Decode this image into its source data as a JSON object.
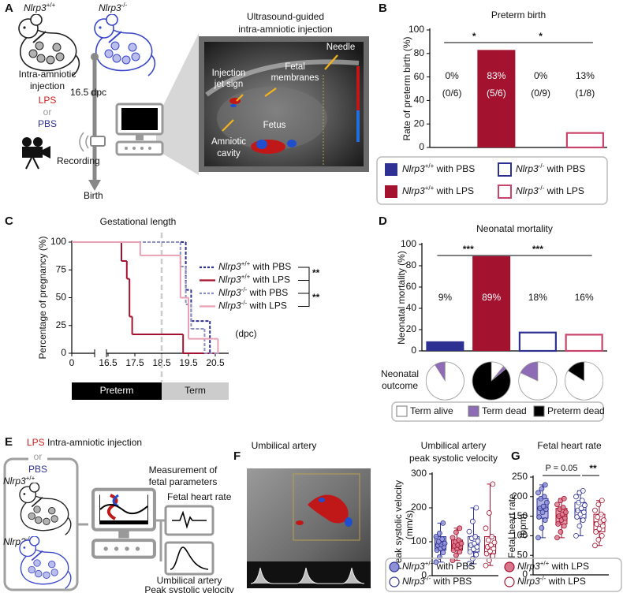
{
  "panel_labels": [
    "A",
    "B",
    "C",
    "D",
    "E",
    "F",
    "G"
  ],
  "panel_a": {
    "genotypes": [
      "Nlrp3+/+",
      "Nlrp3-/-"
    ],
    "injection": [
      "Intra-amniotic",
      "injection"
    ],
    "treatments": [
      "LPS",
      "or",
      "PBS"
    ],
    "timepoint": "16.5 dpc",
    "recording": "Recording",
    "birth": "Birth",
    "image_title": [
      "Ultrasound-guided",
      "intra-amniotic injection"
    ],
    "image_labels": {
      "jet": [
        "Injection",
        "jet sign"
      ],
      "membranes": [
        "Fetal",
        "membranes"
      ],
      "needle": "Needle",
      "fetus": "Fetus",
      "cavity": [
        "Amniotic",
        "cavity"
      ]
    }
  },
  "panel_e": {
    "treatments": [
      "LPS",
      "or",
      "PBS"
    ],
    "injection": "Intra-amniotic injection",
    "genotypes": [
      "Nlrp3+/+",
      "Nlrp3-/-"
    ],
    "measurement": [
      "Measurement of",
      "fetal parameters"
    ],
    "heart_rate": "Fetal heart rate",
    "velocity": [
      "Umbilical artery",
      "Peak systolic velocity"
    ]
  },
  "panel_f_image": {
    "title": "Umbilical artery"
  },
  "chart_data": [
    {
      "type": "bar",
      "title": "Preterm birth",
      "y_label": "Rate of preterm birth (%)",
      "categories": [
        null,
        null,
        null,
        null
      ],
      "values": [
        0,
        83,
        0,
        13
      ],
      "value_labels": [
        "0%",
        "83%",
        "0%",
        "13%"
      ],
      "count_labels": [
        "(0/6)",
        "(5/6)",
        "(0/9)",
        "(1/8)"
      ],
      "colors": [
        "#2e3192",
        "#a3122f",
        "#2e3192",
        "#c8436a"
      ],
      "filled": [
        true,
        true,
        false,
        false
      ],
      "legend": [
        "Nlrp3+/+ with PBS",
        "Nlrp3+/+ with LPS",
        "Nlrp3-/- with PBS",
        "Nlrp3-/- with LPS"
      ],
      "significance": [
        "*",
        "*"
      ],
      "ylim": [
        0,
        100
      ],
      "yticks": [
        0,
        20,
        40,
        60,
        80,
        100
      ]
    },
    {
      "type": "step",
      "title": "Gestational length",
      "y_label": "Percentage of pregnancy (%)",
      "x_unit": "(dpc)",
      "xlim": [
        0,
        21
      ],
      "xticks": [
        0,
        16.5,
        17.5,
        18.5,
        19.5,
        20.5
      ],
      "ylim": [
        0,
        100
      ],
      "yticks": [
        0,
        25,
        50,
        75,
        100
      ],
      "reference_x": 18.5,
      "phases": [
        {
          "label": "Preterm",
          "end": 18.5
        },
        {
          "label": "Term",
          "end": 21
        }
      ],
      "significance": [
        "**",
        "**"
      ],
      "series": [
        {
          "name": "Nlrp3+/+ with PBS",
          "color": "#2e3192",
          "dashed": true,
          "x": [
            0,
            19.4,
            19.6,
            20.3,
            20.6
          ],
          "values": [
            100,
            57,
            29,
            0,
            0
          ]
        },
        {
          "name": "Nlrp3+/+ with LPS",
          "color": "#a3122f",
          "dashed": false,
          "x": [
            0,
            17.0,
            17.2,
            17.3,
            17.4,
            19.3,
            20.6
          ],
          "values": [
            100,
            83,
            67,
            33,
            17,
            0,
            0
          ]
        },
        {
          "name": "Nlrp3-/- with PBS",
          "color": "#8c8fbf",
          "dashed": true,
          "x": [
            0,
            19.2,
            19.4,
            19.6,
            20.1,
            20.6
          ],
          "values": [
            100,
            78,
            44,
            22,
            0,
            0
          ]
        },
        {
          "name": "Nlrp3-/- with LPS",
          "color": "#e8a0b4",
          "dashed": false,
          "x": [
            0,
            17.7,
            19.2,
            19.5,
            20.6
          ],
          "values": [
            100,
            88,
            50,
            13,
            0
          ]
        }
      ]
    },
    {
      "type": "bar",
      "title": "Neonatal mortality",
      "y_label": "Neonatal mortality (%)",
      "categories": [
        null,
        null,
        null,
        null
      ],
      "values": [
        9,
        89,
        18,
        16
      ],
      "value_labels": [
        "9%",
        "89%",
        "18%",
        "16%"
      ],
      "colors": [
        "#2e3192",
        "#a3122f",
        "#2e3192",
        "#c8436a"
      ],
      "filled": [
        true,
        true,
        false,
        false
      ],
      "significance": [
        "***",
        "***"
      ],
      "ylim": [
        0,
        100
      ],
      "yticks": [
        0,
        20,
        40,
        60,
        80,
        100
      ],
      "pies": {
        "label": [
          "Neonatal",
          "outcome"
        ],
        "categories": [
          "Term alive",
          "Term dead",
          "Preterm dead"
        ],
        "colors": [
          "#ffffff",
          "#8e6bb5",
          "#000000"
        ],
        "values": [
          [
            91,
            9,
            0
          ],
          [
            11,
            3,
            86
          ],
          [
            82,
            18,
            0
          ],
          [
            84,
            0,
            16
          ]
        ]
      }
    },
    {
      "type": "box",
      "title": [
        "Umbilical artery",
        "peak systolic velocity"
      ],
      "y_label": [
        "Peak systolic velocity",
        "(mm/s)"
      ],
      "ylim": [
        0,
        300
      ],
      "yticks": [
        0,
        100,
        200,
        300
      ],
      "colors": [
        "#2e3192",
        "#a3122f",
        "#2e3192",
        "#a3122f"
      ],
      "fills": [
        "#8d91d6",
        "#d9768c",
        "#ffffff",
        "#ffffff"
      ],
      "legend": [
        "Nlrp3+/+ with PBS",
        "Nlrp3+/+ with LPS",
        "Nlrp3-/- with PBS",
        "Nlrp3-/- with LPS"
      ],
      "groups": [
        {
          "stats": {
            "min": 40,
            "q1": 75,
            "median": 92,
            "q3": 115,
            "max": 155
          },
          "points": [
            40,
            55,
            68,
            75,
            80,
            85,
            90,
            92,
            95,
            100,
            108,
            115,
            125,
            155
          ]
        },
        {
          "stats": {
            "min": 45,
            "q1": 75,
            "median": 88,
            "q3": 105,
            "max": 140
          },
          "points": [
            45,
            60,
            70,
            75,
            80,
            85,
            88,
            90,
            95,
            100,
            105,
            112,
            128,
            140
          ]
        },
        {
          "stats": {
            "min": 35,
            "q1": 70,
            "median": 90,
            "q3": 115,
            "max": 200
          },
          "points": [
            35,
            50,
            62,
            70,
            78,
            85,
            90,
            95,
            102,
            110,
            115,
            130,
            160,
            200
          ]
        },
        {
          "stats": {
            "min": 30,
            "q1": 65,
            "median": 85,
            "q3": 115,
            "max": 270
          },
          "points": [
            30,
            45,
            58,
            65,
            72,
            80,
            85,
            90,
            98,
            105,
            115,
            140,
            185,
            270
          ]
        }
      ]
    },
    {
      "type": "box",
      "title": "Fetal heart rate",
      "y_label": [
        "Fetal heart rate",
        "(bpm)"
      ],
      "ylim": [
        0,
        250
      ],
      "yticks": [
        0,
        50,
        100,
        150,
        200,
        250
      ],
      "colors": [
        "#2e3192",
        "#a3122f",
        "#2e3192",
        "#a3122f"
      ],
      "fills": [
        "#8d91d6",
        "#d9768c",
        "#ffffff",
        "#ffffff"
      ],
      "annotations": [
        "P = 0.05",
        "**"
      ],
      "groups": [
        {
          "stats": {
            "min": 95,
            "q1": 145,
            "median": 170,
            "q3": 195,
            "max": 230
          },
          "points": [
            95,
            120,
            140,
            148,
            160,
            168,
            170,
            175,
            185,
            195,
            200,
            210,
            220,
            230
          ]
        },
        {
          "stats": {
            "min": 95,
            "q1": 130,
            "median": 150,
            "q3": 170,
            "max": 195
          },
          "points": [
            95,
            110,
            125,
            130,
            140,
            145,
            150,
            155,
            160,
            168,
            172,
            180,
            190,
            195
          ]
        },
        {
          "stats": {
            "min": 100,
            "q1": 145,
            "median": 165,
            "q3": 185,
            "max": 215
          },
          "points": [
            100,
            125,
            140,
            148,
            155,
            160,
            165,
            170,
            178,
            185,
            190,
            200,
            210,
            215
          ]
        },
        {
          "stats": {
            "min": 75,
            "q1": 110,
            "median": 135,
            "q3": 155,
            "max": 190
          },
          "points": [
            75,
            90,
            100,
            110,
            118,
            125,
            130,
            135,
            140,
            148,
            155,
            165,
            180,
            190
          ]
        }
      ]
    }
  ]
}
